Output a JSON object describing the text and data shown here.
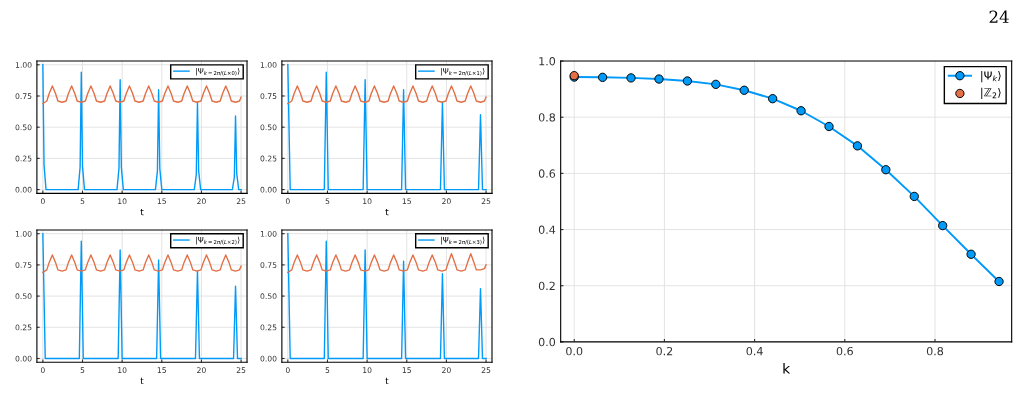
{
  "chart_data": [
    {
      "type": "line",
      "xlabel": "t",
      "xlim": [
        -0.75,
        25.75
      ],
      "ylim": [
        -0.03,
        1.03
      ],
      "xticks": [
        0,
        5,
        10,
        15,
        20,
        25
      ],
      "yticks": [
        {
          "value": 0,
          "label": "0.00"
        },
        {
          "value": 0.25,
          "label": "0.25"
        },
        {
          "value": 0.5,
          "label": "0.50"
        },
        {
          "value": 0.75,
          "label": "0.75"
        },
        {
          "value": 1,
          "label": "1.00"
        }
      ],
      "grid": true,
      "legend": "top right",
      "series": [
        {
          "name": "|Ψ$_{k=2π/(L×0)}$⟩",
          "color": "#009af9",
          "x": [
            0,
            0.15,
            0.4,
            4.45,
            4.7,
            4.85,
            5.0,
            5.25,
            9.35,
            9.6,
            9.75,
            9.9,
            10.15,
            14.2,
            14.45,
            14.6,
            14.75,
            15.0,
            19.1,
            19.35,
            19.5,
            19.65,
            19.9,
            23.9,
            24.15,
            24.3,
            24.45,
            24.7,
            25
          ],
          "values": [
            1.0,
            0.2,
            0,
            0,
            0.18,
            0.94,
            0.19,
            0,
            0,
            0.17,
            0.88,
            0.18,
            0,
            0,
            0.15,
            0.8,
            0.17,
            0,
            0,
            0.12,
            0.7,
            0.15,
            0,
            0,
            0.1,
            0.59,
            0.13,
            0,
            0
          ]
        },
        {
          "color": "#e26f46",
          "x": [
            0,
            0.5,
            0.8,
            1.2,
            1.6,
            1.9,
            2.43,
            2.93,
            3.23,
            3.63,
            4.03,
            4.33,
            4.86,
            5.36,
            5.66,
            6.06,
            6.46,
            6.76,
            7.29,
            7.79,
            8.09,
            8.49,
            8.89,
            9.19,
            9.72,
            10.22,
            10.52,
            10.92,
            11.32,
            11.62,
            12.15,
            12.65,
            12.95,
            13.35,
            13.75,
            14.05,
            14.58,
            15.08,
            15.38,
            15.78,
            16.18,
            16.48,
            17.01,
            17.51,
            17.81,
            18.21,
            18.61,
            18.91,
            19.44,
            19.94,
            20.24,
            20.64,
            21.04,
            21.34,
            21.87,
            22.37,
            22.67,
            23.07,
            23.47,
            23.77,
            24.3,
            24.8,
            25.0
          ],
          "values": [
            0.69,
            0.71,
            0.77,
            0.83,
            0.77,
            0.71,
            0.7,
            0.71,
            0.77,
            0.83,
            0.77,
            0.71,
            0.7,
            0.71,
            0.77,
            0.83,
            0.77,
            0.71,
            0.7,
            0.71,
            0.77,
            0.83,
            0.77,
            0.71,
            0.7,
            0.71,
            0.77,
            0.83,
            0.77,
            0.71,
            0.7,
            0.71,
            0.77,
            0.83,
            0.77,
            0.71,
            0.7,
            0.71,
            0.77,
            0.83,
            0.77,
            0.71,
            0.7,
            0.71,
            0.77,
            0.83,
            0.77,
            0.71,
            0.7,
            0.71,
            0.77,
            0.83,
            0.77,
            0.71,
            0.7,
            0.71,
            0.77,
            0.83,
            0.77,
            0.71,
            0.7,
            0.71,
            0.74
          ]
        }
      ]
    },
    {
      "type": "line",
      "xlabel": "t",
      "xlim": [
        -0.75,
        25.75
      ],
      "ylim": [
        -0.03,
        1.03
      ],
      "xticks": [
        0,
        5,
        10,
        15,
        20,
        25
      ],
      "yticks": [
        {
          "value": 0,
          "label": "0.00"
        },
        {
          "value": 0.25,
          "label": "0.25"
        },
        {
          "value": 0.5,
          "label": "0.50"
        },
        {
          "value": 0.75,
          "label": "0.75"
        },
        {
          "value": 1,
          "label": "1.00"
        }
      ],
      "grid": true,
      "legend": "top right",
      "series": [
        {
          "name": "|Ψ$_{k=2π/(L×1)}$⟩",
          "color": "#009af9",
          "x": [
            0,
            0.3,
            4.6,
            4.85,
            5.1,
            9.5,
            9.75,
            10.0,
            14.35,
            14.6,
            14.85,
            19.25,
            19.5,
            19.75,
            24.05,
            24.3,
            24.55,
            25
          ],
          "values": [
            1.0,
            0,
            0,
            0.94,
            0,
            0,
            0.88,
            0,
            0,
            0.8,
            0,
            0,
            0.7,
            0,
            0,
            0.6,
            0,
            0
          ]
        },
        {
          "color": "#e26f46",
          "x": [
            0,
            0.5,
            0.8,
            1.2,
            1.6,
            1.9,
            2.43,
            2.93,
            3.23,
            3.63,
            4.03,
            4.33,
            4.86,
            5.36,
            5.66,
            6.06,
            6.46,
            6.76,
            7.29,
            7.79,
            8.09,
            8.49,
            8.89,
            9.19,
            9.72,
            10.22,
            10.52,
            10.92,
            11.32,
            11.62,
            12.15,
            12.65,
            12.95,
            13.35,
            13.75,
            14.05,
            14.58,
            15.08,
            15.38,
            15.78,
            16.18,
            16.48,
            17.01,
            17.51,
            17.81,
            18.21,
            18.61,
            18.91,
            19.44,
            19.94,
            20.24,
            20.64,
            21.04,
            21.34,
            21.87,
            22.37,
            22.67,
            23.07,
            23.47,
            23.77,
            24.3,
            24.8,
            25.0
          ],
          "values": [
            0.69,
            0.71,
            0.77,
            0.83,
            0.77,
            0.71,
            0.7,
            0.71,
            0.77,
            0.83,
            0.77,
            0.71,
            0.7,
            0.71,
            0.77,
            0.83,
            0.77,
            0.71,
            0.7,
            0.71,
            0.77,
            0.83,
            0.77,
            0.71,
            0.7,
            0.71,
            0.77,
            0.83,
            0.77,
            0.71,
            0.7,
            0.71,
            0.77,
            0.83,
            0.77,
            0.71,
            0.7,
            0.71,
            0.77,
            0.83,
            0.77,
            0.71,
            0.7,
            0.71,
            0.77,
            0.83,
            0.77,
            0.71,
            0.7,
            0.71,
            0.77,
            0.83,
            0.77,
            0.71,
            0.7,
            0.71,
            0.77,
            0.83,
            0.77,
            0.71,
            0.7,
            0.71,
            0.74
          ]
        }
      ]
    },
    {
      "type": "line",
      "xlabel": "t",
      "xlim": [
        -0.75,
        25.75
      ],
      "ylim": [
        -0.03,
        1.03
      ],
      "xticks": [
        0,
        5,
        10,
        15,
        20,
        25
      ],
      "yticks": [
        {
          "value": 0,
          "label": "0.00"
        },
        {
          "value": 0.25,
          "label": "0.25"
        },
        {
          "value": 0.5,
          "label": "0.50"
        },
        {
          "value": 0.75,
          "label": "0.75"
        },
        {
          "value": 1,
          "label": "1.00"
        }
      ],
      "grid": true,
      "legend": "top right",
      "series": [
        {
          "name": "|Ψ$_{k=2π/(L×2)}$⟩",
          "color": "#009af9",
          "x": [
            0,
            0.3,
            4.6,
            4.85,
            5.1,
            9.5,
            9.75,
            10.0,
            14.35,
            14.6,
            14.85,
            19.25,
            19.5,
            19.75,
            24.05,
            24.3,
            24.55,
            25
          ],
          "values": [
            1.0,
            0,
            0,
            0.94,
            0,
            0,
            0.87,
            0,
            0,
            0.79,
            0,
            0,
            0.7,
            0,
            0,
            0.58,
            0,
            0
          ]
        },
        {
          "color": "#e26f46",
          "x": [
            0,
            0.5,
            0.8,
            1.2,
            1.6,
            1.9,
            2.43,
            2.93,
            3.23,
            3.63,
            4.03,
            4.33,
            4.86,
            5.36,
            5.66,
            6.06,
            6.46,
            6.76,
            7.29,
            7.79,
            8.09,
            8.49,
            8.89,
            9.19,
            9.72,
            10.22,
            10.52,
            10.92,
            11.32,
            11.62,
            12.15,
            12.65,
            12.95,
            13.35,
            13.75,
            14.05,
            14.58,
            15.08,
            15.38,
            15.78,
            16.18,
            16.48,
            17.01,
            17.51,
            17.81,
            18.21,
            18.61,
            18.91,
            19.44,
            19.94,
            20.24,
            20.64,
            21.04,
            21.34,
            21.87,
            22.37,
            22.67,
            23.07,
            23.47,
            23.77,
            24.3,
            24.8,
            25.0
          ],
          "values": [
            0.69,
            0.71,
            0.77,
            0.83,
            0.77,
            0.71,
            0.7,
            0.71,
            0.77,
            0.83,
            0.77,
            0.71,
            0.7,
            0.71,
            0.77,
            0.83,
            0.77,
            0.71,
            0.7,
            0.71,
            0.77,
            0.83,
            0.77,
            0.71,
            0.7,
            0.71,
            0.77,
            0.83,
            0.77,
            0.71,
            0.7,
            0.71,
            0.77,
            0.83,
            0.77,
            0.71,
            0.7,
            0.71,
            0.77,
            0.83,
            0.77,
            0.71,
            0.7,
            0.71,
            0.77,
            0.83,
            0.77,
            0.71,
            0.7,
            0.71,
            0.77,
            0.83,
            0.77,
            0.71,
            0.7,
            0.71,
            0.77,
            0.83,
            0.77,
            0.71,
            0.7,
            0.71,
            0.74
          ]
        }
      ]
    },
    {
      "type": "line",
      "xlabel": "t",
      "xlim": [
        -0.75,
        25.75
      ],
      "ylim": [
        -0.03,
        1.03
      ],
      "xticks": [
        0,
        5,
        10,
        15,
        20,
        25
      ],
      "yticks": [
        {
          "value": 0,
          "label": "0.00"
        },
        {
          "value": 0.25,
          "label": "0.25"
        },
        {
          "value": 0.5,
          "label": "0.50"
        },
        {
          "value": 0.75,
          "label": "0.75"
        },
        {
          "value": 1,
          "label": "1.00"
        }
      ],
      "grid": true,
      "legend": "top right",
      "series": [
        {
          "name": "|Ψ$_{k=2π/(L×3)}$⟩",
          "color": "#009af9",
          "x": [
            0,
            0.3,
            4.6,
            4.85,
            5.1,
            9.5,
            9.75,
            10.0,
            14.35,
            14.6,
            14.85,
            19.25,
            19.5,
            19.75,
            24.05,
            24.3,
            24.55,
            25
          ],
          "values": [
            1.0,
            0,
            0,
            0.94,
            0,
            0,
            0.87,
            0,
            0,
            0.78,
            0,
            0,
            0.68,
            0,
            0,
            0.56,
            0,
            0
          ]
        },
        {
          "color": "#e26f46",
          "x": [
            0,
            0.5,
            0.8,
            1.2,
            1.6,
            1.9,
            2.43,
            2.93,
            3.23,
            3.63,
            4.03,
            4.33,
            4.86,
            5.36,
            5.66,
            6.06,
            6.46,
            6.76,
            7.29,
            7.79,
            8.09,
            8.49,
            8.89,
            9.19,
            9.72,
            10.22,
            10.52,
            10.92,
            11.32,
            11.62,
            12.15,
            12.65,
            12.95,
            13.35,
            13.75,
            14.05,
            14.58,
            15.08,
            15.38,
            15.78,
            16.18,
            16.48,
            17.01,
            17.51,
            17.81,
            18.21,
            18.61,
            18.91,
            19.44,
            19.94,
            20.24,
            20.64,
            21.04,
            21.34,
            21.87,
            22.37,
            22.67,
            23.07,
            23.47,
            23.77,
            24.3,
            24.8,
            25.0
          ],
          "values": [
            0.69,
            0.71,
            0.77,
            0.83,
            0.77,
            0.71,
            0.7,
            0.71,
            0.77,
            0.83,
            0.77,
            0.71,
            0.7,
            0.71,
            0.77,
            0.83,
            0.77,
            0.71,
            0.7,
            0.71,
            0.77,
            0.83,
            0.77,
            0.71,
            0.7,
            0.71,
            0.77,
            0.83,
            0.77,
            0.71,
            0.7,
            0.71,
            0.77,
            0.83,
            0.77,
            0.71,
            0.7,
            0.71,
            0.77,
            0.83,
            0.77,
            0.71,
            0.7,
            0.71,
            0.77,
            0.83,
            0.77,
            0.71,
            0.7,
            0.71,
            0.77,
            0.84,
            0.77,
            0.71,
            0.7,
            0.71,
            0.77,
            0.84,
            0.77,
            0.71,
            0.71,
            0.72,
            0.75
          ]
        }
      ]
    },
    {
      "type": "line",
      "xlabel": "k",
      "xlim": [
        -0.03,
        0.97
      ],
      "ylim": [
        0,
        1
      ],
      "xticks": [
        {
          "value": 0,
          "label": "0.0"
        },
        {
          "value": 0.2,
          "label": "0.2"
        },
        {
          "value": 0.4,
          "label": "0.4"
        },
        {
          "value": 0.6,
          "label": "0.6"
        },
        {
          "value": 0.8,
          "label": "0.8"
        }
      ],
      "yticks": [
        {
          "value": 0,
          "label": "0.0"
        },
        {
          "value": 0.2,
          "label": "0.2"
        },
        {
          "value": 0.4,
          "label": "0.4"
        },
        {
          "value": 0.6,
          "label": "0.6"
        },
        {
          "value": 0.8,
          "label": "0.8"
        },
        {
          "value": 1,
          "label": "1.0"
        }
      ],
      "grid": true,
      "legend": "top right",
      "marker": "circle",
      "annotations": [
        "24"
      ],
      "series": [
        {
          "name": "|Ψ$_{k}$⟩",
          "color": "#009af9",
          "x": [
            0,
            0.063,
            0.126,
            0.188,
            0.251,
            0.314,
            0.377,
            0.44,
            0.503,
            0.565,
            0.628,
            0.691,
            0.754,
            0.817,
            0.88,
            0.942
          ],
          "values": [
            0.943,
            0.942,
            0.94,
            0.936,
            0.929,
            0.917,
            0.896,
            0.866,
            0.823,
            0.767,
            0.698,
            0.613,
            0.518,
            0.414,
            0.312,
            0.215
          ]
        },
        {
          "name": "|ℤ$_{2}$⟩",
          "type": "scatter",
          "color": "#e26f46",
          "x": [
            0
          ],
          "values": [
            0.948
          ]
        }
      ]
    }
  ]
}
